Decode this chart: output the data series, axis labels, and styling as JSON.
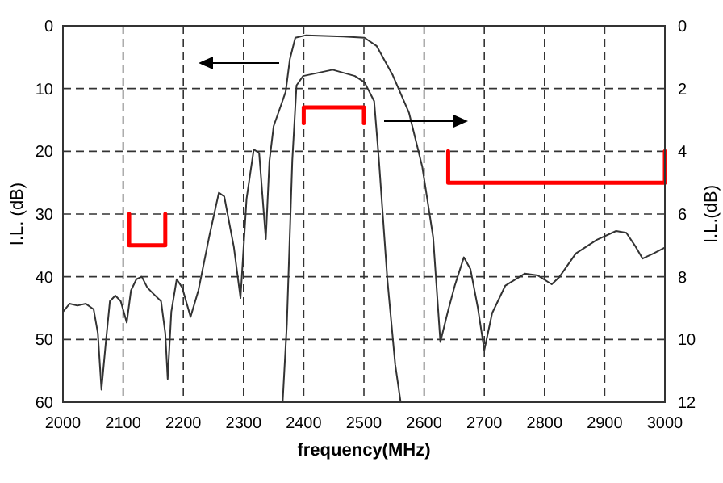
{
  "chart_data": {
    "type": "line",
    "xlabel": "frequency(MHz)",
    "ylabel": "I.L. (dB)",
    "y2label": "I.L.(dB)",
    "xlim": [
      2000,
      3000
    ],
    "xticks": [
      2000,
      2100,
      2200,
      2300,
      2400,
      2500,
      2600,
      2700,
      2800,
      2900,
      3000
    ],
    "ylim": [
      60,
      0
    ],
    "yticks": [
      0,
      10,
      20,
      30,
      40,
      50,
      60
    ],
    "y2lim": [
      12,
      0
    ],
    "y2ticks": [
      0,
      2,
      4,
      6,
      8,
      10,
      12
    ],
    "grid": true,
    "line_style": "solid",
    "marker": "none",
    "series": [
      {
        "color": "#333333",
        "x": [
          2000,
          2011,
          2024,
          2038,
          2051,
          2058,
          2064,
          2071,
          2078,
          2087,
          2096,
          2106,
          2113,
          2122,
          2131,
          2140,
          2149,
          2163,
          2170,
          2174,
          2180,
          2189,
          2198,
          2212,
          2225,
          2243,
          2259,
          2268,
          2284,
          2295,
          2305,
          2317,
          2326,
          2337,
          2343,
          2350,
          2361,
          2370,
          2377,
          2386,
          2404,
          2466,
          2501,
          2521,
          2548,
          2575,
          2597,
          2615,
          2627,
          2639,
          2651,
          2666,
          2677,
          2689,
          2700,
          2713,
          2735,
          2767,
          2789,
          2812,
          2825,
          2852,
          2887,
          2919,
          2936,
          2950,
          2963,
          2981,
          2999
        ],
        "values": [
          45.6,
          44.3,
          44.6,
          44.3,
          45.2,
          49,
          58,
          50.7,
          43.9,
          43,
          43.9,
          47.3,
          42.2,
          40.4,
          40,
          41.7,
          42.6,
          43.9,
          49,
          56.3,
          45.6,
          40.4,
          41.7,
          46.4,
          42.2,
          33.6,
          26.6,
          27.2,
          35.3,
          43.4,
          27.6,
          19.7,
          20.3,
          34,
          21.6,
          16,
          13,
          10.5,
          5.3,
          1.9,
          1.5,
          1.7,
          1.9,
          3.2,
          7.9,
          13.9,
          22.5,
          33.7,
          50.4,
          45.7,
          41.4,
          36.9,
          38.8,
          44.8,
          51.7,
          45.8,
          41.4,
          39.5,
          39.8,
          41.2,
          40,
          36.3,
          34.1,
          32.7,
          33,
          35,
          37.1,
          36.3,
          35.4
        ]
      },
      {
        "color": "#333333",
        "axis": "y2",
        "x": [
          2365,
          2372,
          2381,
          2388,
          2399,
          2448,
          2485,
          2501,
          2517,
          2525,
          2539,
          2552,
          2561
        ],
        "values": [
          12,
          9.5,
          4.3,
          1.9,
          1.6,
          1.4,
          1.6,
          1.8,
          2.4,
          4.3,
          8.1,
          10.8,
          12
        ]
      },
      {
        "color": "#ff0000",
        "x": [
          2110,
          2110,
          2170,
          2170
        ],
        "values": [
          30,
          35,
          35,
          30
        ]
      },
      {
        "color": "#ff0000",
        "x": [
          2400,
          2400,
          2500,
          2500
        ],
        "values": [
          15.5,
          13,
          13,
          15.5
        ]
      },
      {
        "color": "#ff0000",
        "x": [
          2640,
          2640,
          3000,
          3000
        ],
        "values": [
          20,
          25,
          25,
          20
        ]
      }
    ]
  }
}
